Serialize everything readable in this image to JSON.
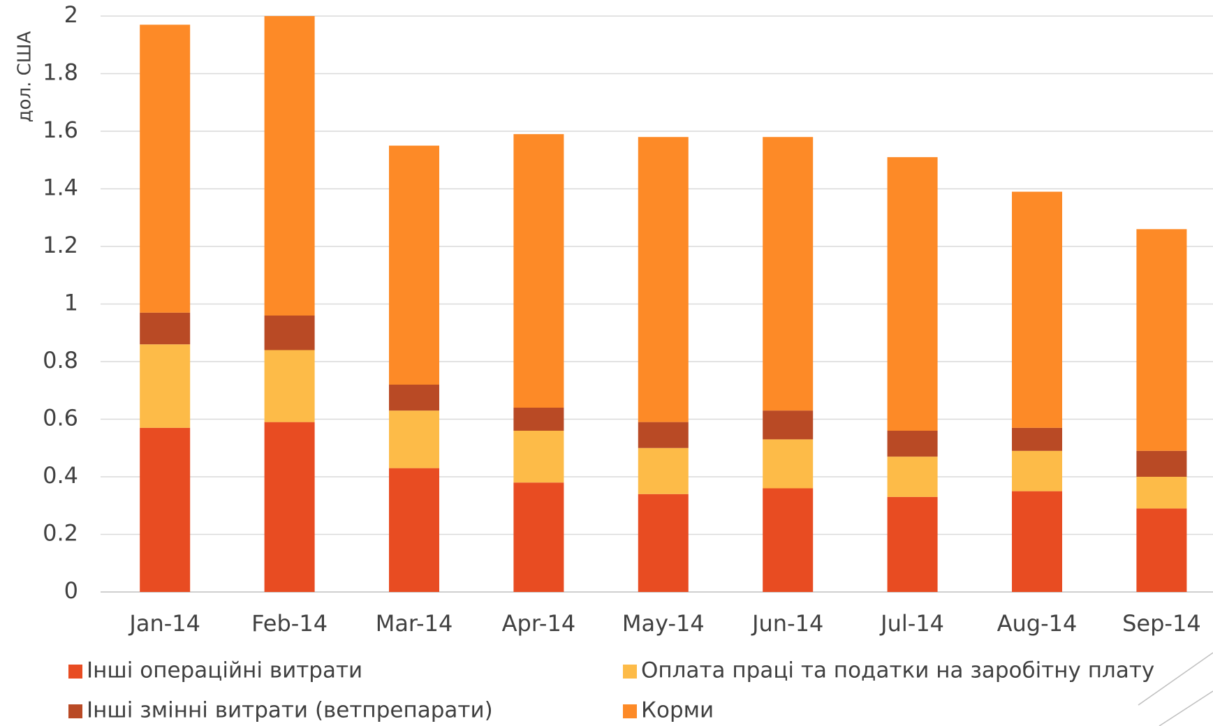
{
  "chart_data": {
    "type": "stacked_bar",
    "y_label": "дол. США",
    "categories": [
      "Jan-14",
      "Feb-14",
      "Mar-14",
      "Apr-14",
      "May-14",
      "Jun-14",
      "Jul-14",
      "Aug-14",
      "Sep-14"
    ],
    "series": [
      {
        "name": "Інші операційні витрати",
        "color": "#e84c22",
        "values": [
          0.57,
          0.59,
          0.43,
          0.38,
          0.34,
          0.36,
          0.33,
          0.35,
          0.29
        ]
      },
      {
        "name": "Оплата праці та податки на заробітну плату",
        "color": "#fdbb48",
        "values": [
          0.29,
          0.25,
          0.2,
          0.18,
          0.16,
          0.17,
          0.14,
          0.14,
          0.11
        ]
      },
      {
        "name": "Інші змінні витрати (ветпрепарати)",
        "color": "#b94a25",
        "values": [
          0.11,
          0.12,
          0.09,
          0.08,
          0.09,
          0.1,
          0.09,
          0.08,
          0.09
        ]
      },
      {
        "name": "Корми",
        "color": "#fd8a27",
        "values": [
          1.0,
          1.04,
          0.83,
          0.95,
          0.99,
          0.95,
          0.95,
          0.82,
          0.77
        ]
      }
    ],
    "ylim": [
      0,
      2
    ],
    "yticks": [
      0,
      0.2,
      0.4,
      0.6,
      0.8,
      1,
      1.2,
      1.4,
      1.6,
      1.8,
      2
    ],
    "grid": true
  }
}
